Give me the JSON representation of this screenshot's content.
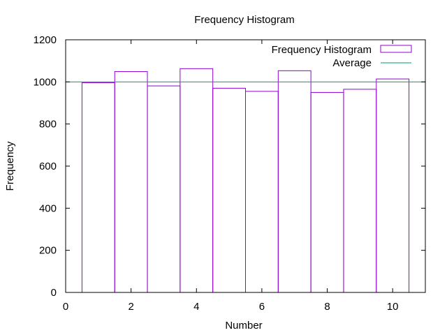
{
  "chart_data": {
    "type": "bar",
    "title": "Frequency Histogram",
    "xlabel": "Number",
    "ylabel": "Frequency",
    "xlim": [
      0,
      11
    ],
    "ylim": [
      0,
      1200
    ],
    "xticks": [
      0,
      2,
      4,
      6,
      8,
      10
    ],
    "yticks": [
      0,
      200,
      400,
      600,
      800,
      1000,
      1200
    ],
    "grid": false,
    "legend_position": "top-right",
    "categories": [
      1,
      2,
      3,
      4,
      5,
      6,
      7,
      8,
      9,
      10
    ],
    "bin_width": 1,
    "series": [
      {
        "name": "Frequency Histogram",
        "type": "bar",
        "color": "#9400d3",
        "values": [
          996,
          1049,
          981,
          1063,
          970,
          955,
          1053,
          950,
          965,
          1014
        ]
      },
      {
        "name": "Average",
        "type": "hline",
        "color": "#009e73",
        "value": 1000
      }
    ]
  }
}
